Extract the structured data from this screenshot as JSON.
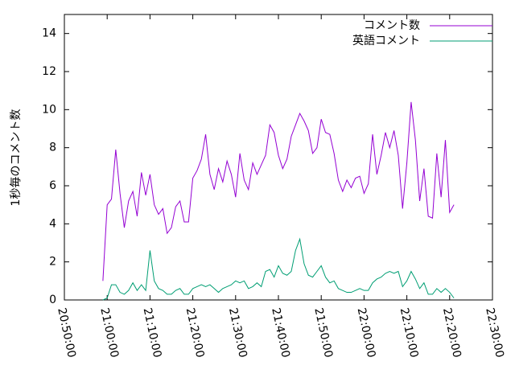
{
  "chart_data": {
    "type": "line",
    "ylabel": "1秒毎のコメント数",
    "x": [
      "20:59:00",
      "21:00:00",
      "21:01:00",
      "21:02:00",
      "21:03:00",
      "21:04:00",
      "21:05:00",
      "21:06:00",
      "21:07:00",
      "21:08:00",
      "21:09:00",
      "21:10:00",
      "21:11:00",
      "21:12:00",
      "21:13:00",
      "21:14:00",
      "21:15:00",
      "21:16:00",
      "21:17:00",
      "21:18:00",
      "21:19:00",
      "21:20:00",
      "21:21:00",
      "21:22:00",
      "21:23:00",
      "21:24:00",
      "21:25:00",
      "21:26:00",
      "21:27:00",
      "21:28:00",
      "21:29:00",
      "21:30:00",
      "21:31:00",
      "21:32:00",
      "21:33:00",
      "21:34:00",
      "21:35:00",
      "21:36:00",
      "21:37:00",
      "21:38:00",
      "21:39:00",
      "21:40:00",
      "21:41:00",
      "21:42:00",
      "21:43:00",
      "21:44:00",
      "21:45:00",
      "21:46:00",
      "21:47:00",
      "21:48:00",
      "21:49:00",
      "21:50:00",
      "21:51:00",
      "21:52:00",
      "21:53:00",
      "21:54:00",
      "21:55:00",
      "21:56:00",
      "21:57:00",
      "21:58:00",
      "21:59:00",
      "22:00:00",
      "22:01:00",
      "22:02:00",
      "22:03:00",
      "22:04:00",
      "22:05:00",
      "22:06:00",
      "22:07:00",
      "22:08:00",
      "22:09:00",
      "22:10:00",
      "22:11:00",
      "22:12:00",
      "22:13:00",
      "22:14:00",
      "22:15:00",
      "22:16:00",
      "22:17:00",
      "22:18:00",
      "22:19:00",
      "22:20:00",
      "22:21:00"
    ],
    "series": [
      {
        "name": "コメント数",
        "color": "#9400d3",
        "values": [
          1.0,
          5.0,
          5.3,
          7.9,
          5.6,
          3.8,
          5.2,
          5.7,
          4.4,
          6.7,
          5.5,
          6.6,
          5.0,
          4.5,
          4.8,
          3.5,
          3.8,
          4.9,
          5.2,
          4.1,
          4.1,
          6.4,
          6.8,
          7.4,
          8.7,
          6.6,
          5.8,
          6.9,
          6.2,
          7.3,
          6.6,
          5.4,
          7.7,
          6.3,
          5.8,
          7.2,
          6.6,
          7.1,
          7.6,
          9.2,
          8.8,
          7.6,
          6.9,
          7.4,
          8.6,
          9.2,
          9.8,
          9.4,
          8.9,
          7.7,
          8.0,
          9.5,
          8.8,
          8.7,
          7.7,
          6.3,
          5.7,
          6.3,
          5.9,
          6.4,
          6.5,
          5.6,
          6.1,
          8.7,
          6.6,
          7.6,
          8.8,
          8.0,
          8.9,
          7.6,
          4.8,
          7.2,
          10.4,
          8.4,
          5.2,
          6.9,
          4.4,
          4.3,
          7.7,
          5.4,
          8.4,
          4.6,
          5.0
        ]
      },
      {
        "name": "英語コメント",
        "color": "#009e73",
        "values": [
          0,
          0.1,
          0.8,
          0.8,
          0.4,
          0.3,
          0.5,
          0.9,
          0.5,
          0.8,
          0.5,
          2.6,
          1.0,
          0.6,
          0.5,
          0.3,
          0.3,
          0.5,
          0.6,
          0.3,
          0.3,
          0.6,
          0.7,
          0.8,
          0.7,
          0.8,
          0.6,
          0.4,
          0.6,
          0.7,
          0.8,
          1.0,
          0.9,
          1.0,
          0.6,
          0.7,
          0.9,
          0.7,
          1.5,
          1.6,
          1.2,
          1.8,
          1.4,
          1.3,
          1.5,
          2.6,
          3.2,
          1.9,
          1.3,
          1.2,
          1.5,
          1.8,
          1.2,
          0.9,
          1.0,
          0.6,
          0.5,
          0.4,
          0.4,
          0.5,
          0.6,
          0.5,
          0.5,
          0.9,
          1.1,
          1.2,
          1.4,
          1.5,
          1.4,
          1.5,
          0.7,
          1.0,
          1.5,
          1.1,
          0.6,
          0.9,
          0.3,
          0.3,
          0.6,
          0.4,
          0.6,
          0.4,
          0.1
        ]
      }
    ],
    "xlim": [
      "20:50:00",
      "22:30:00"
    ],
    "xticks": [
      "20:50:00",
      "21:00:00",
      "21:10:00",
      "21:20:00",
      "21:30:00",
      "21:40:00",
      "21:50:00",
      "22:00:00",
      "22:10:00",
      "22:20:00",
      "22:30:00"
    ],
    "ylim": [
      0,
      15
    ],
    "yticks": [
      0,
      2,
      4,
      6,
      8,
      10,
      12,
      14
    ],
    "legend": "top-right"
  }
}
